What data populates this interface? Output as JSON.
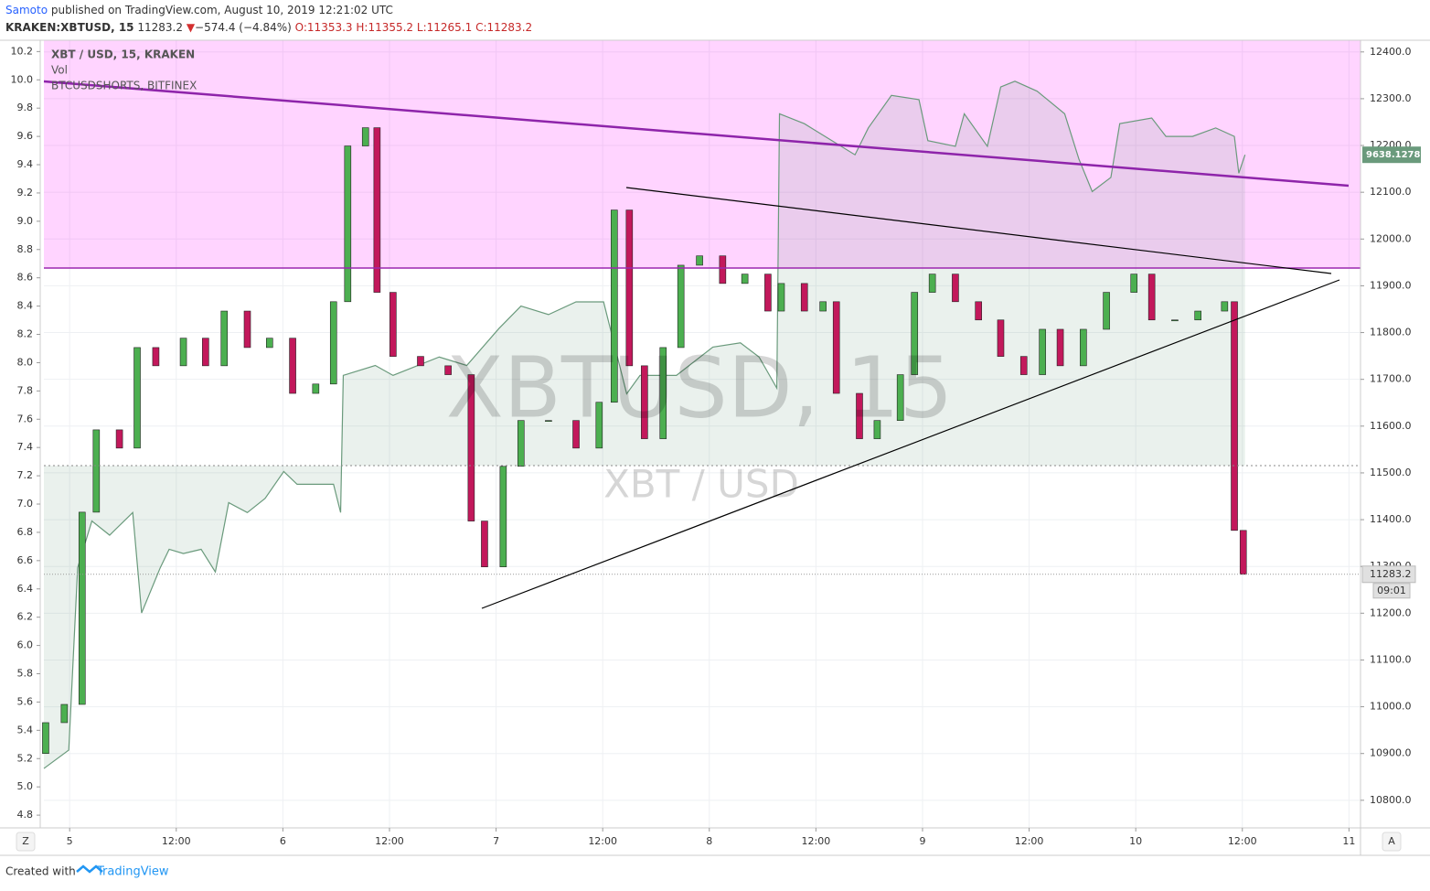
{
  "header": {
    "author": "Samoto",
    "published": "published on TradingView.com, August 10, 2019 12:21:02 UTC",
    "symbol": "KRAKEN:XBTUSD, 15",
    "last": "11283.2",
    "arrow": "▼",
    "change": "−574.4 (−4.84%)",
    "open": "O:11353.3",
    "high": "H:11355.2",
    "low": "L:11265.1",
    "close": "C:11283.2"
  },
  "indicators": [
    "Vol"
  ],
  "watermark": {
    "symbol": "XBTUSD, 15",
    "pair": "XBT / USD"
  },
  "buttons": {
    "left": "Z",
    "right": "A"
  },
  "footer": {
    "created": "Created with",
    "brand": "TradingView"
  },
  "chart_data": {
    "type": "candlestick",
    "xlim": [
      -2.9,
      145.3
    ],
    "xticks": [
      {
        "value": 0,
        "label": "5"
      },
      {
        "value": 12,
        "label": "12:00"
      },
      {
        "value": 24,
        "label": "6"
      },
      {
        "value": 36,
        "label": "12:00"
      },
      {
        "value": 48,
        "label": "7"
      },
      {
        "value": 60,
        "label": "12:00"
      },
      {
        "value": 72,
        "label": "8"
      },
      {
        "value": 84,
        "label": "12:00"
      },
      {
        "value": 96,
        "label": "9"
      },
      {
        "value": 108,
        "label": "12:00"
      },
      {
        "value": 120,
        "label": "10"
      },
      {
        "value": 132,
        "label": "12:00"
      },
      {
        "value": 144,
        "label": "11"
      }
    ],
    "ylim": [
      10741,
      12425
    ],
    "yticks": [
      {
        "value": 10800,
        "label": "10800.0"
      },
      {
        "value": 10900,
        "label": "10900.0"
      },
      {
        "value": 11000,
        "label": "11000.0"
      },
      {
        "value": 11100,
        "label": "11100.0"
      },
      {
        "value": 11200,
        "label": "11200.0"
      },
      {
        "value": 11300,
        "label": "11300.0"
      },
      {
        "value": 11400,
        "label": "11400.0"
      },
      {
        "value": 11500,
        "label": "11500.0"
      },
      {
        "value": 11600,
        "label": "11600.0"
      },
      {
        "value": 11700,
        "label": "11700.0"
      },
      {
        "value": 11800,
        "label": "11800.0"
      },
      {
        "value": 11900,
        "label": "11900.0"
      },
      {
        "value": 12000,
        "label": "12000.0"
      },
      {
        "value": 12100,
        "label": "12100.0"
      },
      {
        "value": 12200,
        "label": "12200.0"
      },
      {
        "value": 12300,
        "label": "12300.0"
      },
      {
        "value": 12400,
        "label": "12400.0"
      }
    ],
    "y2lim": [
      4.71,
      10.28
    ],
    "y2ticks": [
      4.8,
      {
        "value": 5,
        "label": "5.0"
      },
      5.2,
      5.4,
      5.6,
      5.8,
      {
        "value": 6,
        "label": "6.0"
      },
      6.2,
      6.4,
      6.6,
      6.8,
      {
        "value": 7,
        "label": "7.0"
      },
      7.2,
      7.4,
      7.6,
      7.8,
      {
        "value": 8,
        "label": "8.0"
      },
      8.2,
      8.4,
      8.6,
      8.8,
      {
        "value": 9,
        "label": "9.0"
      },
      9.2,
      9.4,
      9.6,
      9.8,
      {
        "value": 10,
        "label": "10.0"
      },
      10.2
    ],
    "grid": true,
    "up_color": "#4caf50",
    "down_color": "#c2185b",
    "series": [
      {
        "name": "XBT / USD, 15, KRAKEN",
        "x": [
          -2.7,
          -0.6,
          1.4,
          3.0,
          5.6,
          7.6,
          9.7,
          12.8,
          15.3,
          17.4,
          20.0,
          22.5,
          25.1,
          27.7,
          29.7,
          31.3,
          33.3,
          34.6,
          36.4,
          39.5,
          42.6,
          45.2,
          46.7,
          48.8,
          50.8,
          53.9,
          57.0,
          59.6,
          61.3,
          63.0,
          64.7,
          66.8,
          68.8,
          70.9,
          73.5,
          76.0,
          78.6,
          80.1,
          82.7,
          84.8,
          86.3,
          88.9,
          90.9,
          93.5,
          95.1,
          97.1,
          99.7,
          102.3,
          104.8,
          107.4,
          109.5,
          111.5,
          114.1,
          116.7,
          119.8,
          121.8,
          124.4,
          127.0,
          130.0,
          131.1,
          132.1
        ],
        "open": [
          10900,
          10966,
          11005,
          11416,
          11592,
          11553,
          11768,
          11729,
          11788,
          11729,
          11846,
          11768,
          11788,
          11670,
          11690,
          11866,
          12199,
          12238,
          11886,
          11749,
          11729,
          11710,
          11397,
          11299,
          11514,
          11612,
          11612,
          11553,
          11651,
          12062,
          11729,
          11573,
          11768,
          11944,
          11964,
          11905,
          11925,
          11846,
          11905,
          11846,
          11866,
          11670,
          11573,
          11612,
          11710,
          11886,
          11925,
          11866,
          11827,
          11749,
          11710,
          11807,
          11729,
          11807,
          11886,
          11925,
          11827,
          11827,
          11846,
          11866,
          11377
        ],
        "close": [
          10966,
          11005,
          11416,
          11592,
          11553,
          11768,
          11729,
          11788,
          11729,
          11846,
          11768,
          11788,
          11670,
          11690,
          11866,
          12199,
          12238,
          11886,
          11749,
          11729,
          11710,
          11397,
          11299,
          11514,
          11612,
          11612,
          11553,
          11651,
          12062,
          11729,
          11573,
          11768,
          11944,
          11964,
          11905,
          11925,
          11846,
          11905,
          11846,
          11866,
          11670,
          11573,
          11612,
          11710,
          11886,
          11925,
          11866,
          11827,
          11749,
          11710,
          11807,
          11729,
          11807,
          11886,
          11925,
          11827,
          11827,
          11846,
          11866,
          11377,
          11283.2
        ]
      },
      {
        "name": "BTCUSDSHORTS, BITFINEX",
        "axis": "y2",
        "color": "#6a9a7c",
        "x": [
          -2.9,
          -0.1,
          0.9,
          2.5,
          4.5,
          7.1,
          8.1,
          10.2,
          11.2,
          12.8,
          14.8,
          16.4,
          17.9,
          20.0,
          22.0,
          24.1,
          25.6,
          29.7,
          30.5,
          30.8,
          34.4,
          36.4,
          41.6,
          44.7,
          48.3,
          50.8,
          53.9,
          57.0,
          60.1,
          62.7,
          64.2,
          68.3,
          72.4,
          75.5,
          77.6,
          79.6,
          79.9,
          82.7,
          85.8,
          88.4,
          89.9,
          92.5,
          95.6,
          96.6,
          99.7,
          100.7,
          103.3,
          104.8,
          106.4,
          108.9,
          112.0,
          113.6,
          115.1,
          117.2,
          118.2,
          121.8,
          123.4,
          126.4,
          129.0,
          131.1,
          131.6,
          132.3
        ],
        "values": [
          5.13,
          5.26,
          6.55,
          6.88,
          6.78,
          6.94,
          6.23,
          6.55,
          6.68,
          6.65,
          6.68,
          6.52,
          7.01,
          6.94,
          7.04,
          7.23,
          7.14,
          7.14,
          6.94,
          7.91,
          7.98,
          7.91,
          8.04,
          7.98,
          8.24,
          8.4,
          8.34,
          8.43,
          8.43,
          7.78,
          7.91,
          7.91,
          8.11,
          8.14,
          8.04,
          7.82,
          9.76,
          9.69,
          9.57,
          9.47,
          9.66,
          9.89,
          9.86,
          9.57,
          9.53,
          9.76,
          9.53,
          9.95,
          9.99,
          9.92,
          9.76,
          9.44,
          9.21,
          9.31,
          9.69,
          9.73,
          9.6,
          9.6,
          9.66,
          9.6,
          9.34,
          9.47
        ]
      }
    ],
    "last_price": {
      "value": 11283.2,
      "countdown": "09:01"
    },
    "shorts_badge": "9638.1278"
  }
}
